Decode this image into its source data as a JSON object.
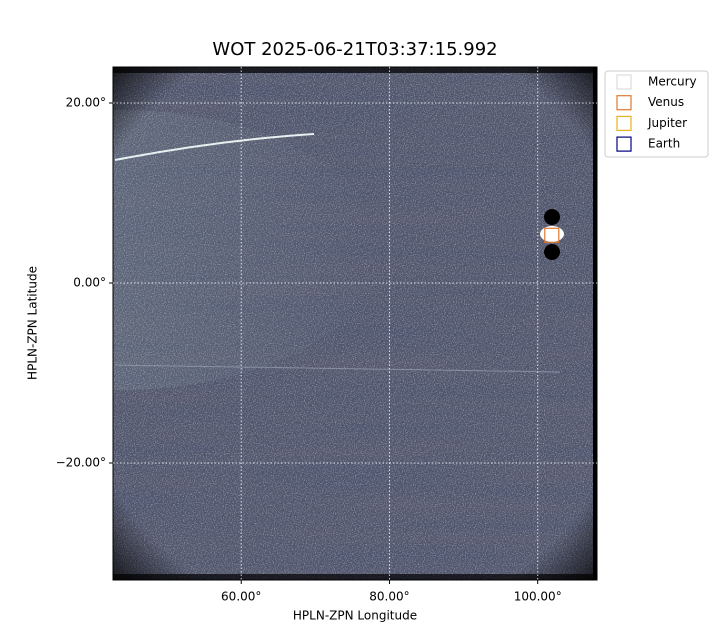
{
  "chart_data": {
    "type": "image",
    "title": "WOT 2025-06-21T03:37:15.992",
    "x_label": "HPLN-ZPN Longitude",
    "y_label": "HPLN-ZPN Latitude",
    "xlim": [
      42.7,
      108
    ],
    "ylim": [
      -33,
      24
    ],
    "xticks": [
      {
        "value": 60,
        "label": "60.00°"
      },
      {
        "value": 80,
        "label": "80.00°"
      },
      {
        "value": 100,
        "label": "100.00°"
      }
    ],
    "yticks": [
      {
        "value": -20,
        "label": "−20.00°"
      },
      {
        "value": 0,
        "label": "0.00°"
      },
      {
        "value": 20,
        "label": "20.00°"
      }
    ],
    "grid": true,
    "legend": "upper right outside",
    "series": [
      {
        "name": "Mercury",
        "color": "#dddddd"
      },
      {
        "name": "Venus",
        "color": "#e07830",
        "x": [
          101.9
        ],
        "y": [
          5.3
        ]
      },
      {
        "name": "Jupiter",
        "color": "#e8b020"
      },
      {
        "name": "Earth",
        "color": "#000080"
      }
    ]
  }
}
